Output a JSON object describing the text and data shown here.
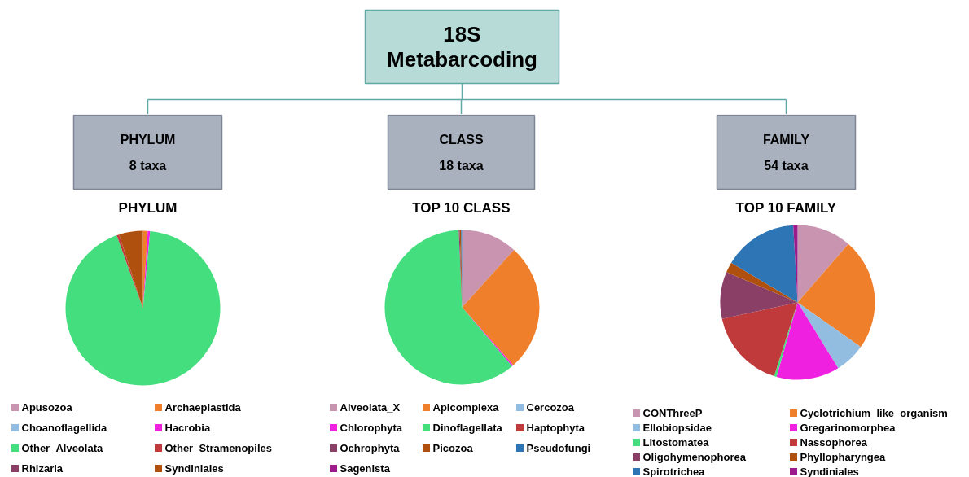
{
  "chart_data": [
    {
      "type": "other",
      "title": "18S\nMetabarcoding"
    },
    {
      "type": "pie",
      "title": "PHYLUM",
      "annotations": [
        "PHYLUM",
        "8 taxa"
      ],
      "legend": "bottom",
      "categories": [
        "Apusozoa",
        "Archaeplastida",
        "Choanoflagellida",
        "Hacrobia",
        "Other_Alveolata",
        "Other_Stramenopiles",
        "Rhizaria",
        "Syndiniales"
      ],
      "values": [
        0,
        1,
        0,
        0.5,
        93,
        0.5,
        0,
        5
      ],
      "colors": [
        "#c994b0",
        "#f07f2c",
        "#92bde0",
        "#f020e0",
        "#45de7e",
        "#c0393b",
        "#8a3f66",
        "#b0500f"
      ]
    },
    {
      "type": "pie",
      "title": "TOP 10 CLASS",
      "annotations": [
        "CLASS",
        "18 taxa"
      ],
      "legend": "bottom",
      "categories": [
        "Alveolata_X",
        "Apicomplexa",
        "Cercozoa",
        "Chlorophyta",
        "Dinoflagellata",
        "Haptophyta",
        "Ochrophyta",
        "Picozoa",
        "Pseudofungi",
        "Sagenista"
      ],
      "values": [
        11.7,
        26.8,
        0,
        0.3,
        60.5,
        0,
        0.2,
        0.3,
        0.2,
        0
      ],
      "colors": [
        "#c994b0",
        "#f07f2c",
        "#92bde0",
        "#f020e0",
        "#45de7e",
        "#c0393b",
        "#8a3f66",
        "#b0500f",
        "#2e75b6",
        "#9c1a8c"
      ]
    },
    {
      "type": "pie",
      "title": "TOP 10 FAMILY",
      "annotations": [
        "FAMILY",
        "54 taxa"
      ],
      "legend": "bottom",
      "categories": [
        "CONThreeP",
        "Cyclotrichium_like_organism",
        "Ellobiopsidae",
        "Gregarinomorphea",
        "Litostomatea",
        "Nassophorea",
        "Oligohymenophorea",
        "Phyllopharyngea",
        "Spirotrichea",
        "Syndiniales"
      ],
      "values": [
        11.4,
        23.4,
        6.4,
        13.2,
        0.5,
        16.7,
        9.8,
        2.2,
        15.5,
        0.9
      ],
      "colors": [
        "#c994b0",
        "#f07f2c",
        "#92bde0",
        "#f020e0",
        "#45de7e",
        "#c0393b",
        "#8a3f66",
        "#b0500f",
        "#2e75b6",
        "#9c1a8c"
      ]
    }
  ]
}
